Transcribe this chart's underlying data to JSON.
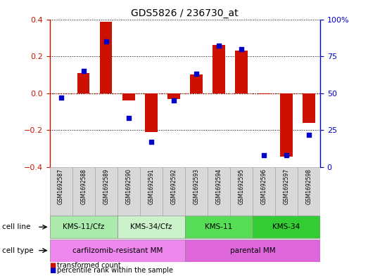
{
  "title": "GDS5826 / 236730_at",
  "samples": [
    "GSM1692587",
    "GSM1692588",
    "GSM1692589",
    "GSM1692590",
    "GSM1692591",
    "GSM1692592",
    "GSM1692593",
    "GSM1692594",
    "GSM1692595",
    "GSM1692596",
    "GSM1692597",
    "GSM1692598"
  ],
  "transformed_count": [
    0.0,
    0.11,
    0.385,
    -0.04,
    -0.21,
    -0.03,
    0.1,
    0.26,
    0.23,
    -0.005,
    -0.345,
    -0.16
  ],
  "percentile_rank": [
    47,
    65,
    85,
    33,
    17,
    45,
    63,
    82,
    80,
    8,
    8,
    22
  ],
  "cell_line_groups": [
    {
      "label": "KMS-11/Cfz",
      "start": 0,
      "end": 3,
      "color": "#aaeaaa"
    },
    {
      "label": "KMS-34/Cfz",
      "start": 3,
      "end": 6,
      "color": "#ccf2cc"
    },
    {
      "label": "KMS-11",
      "start": 6,
      "end": 9,
      "color": "#55dd55"
    },
    {
      "label": "KMS-34",
      "start": 9,
      "end": 12,
      "color": "#33cc33"
    }
  ],
  "cell_type_groups": [
    {
      "label": "carfilzomib-resistant MM",
      "start": 0,
      "end": 6,
      "color": "#ee88ee"
    },
    {
      "label": "parental MM",
      "start": 6,
      "end": 12,
      "color": "#dd66dd"
    }
  ],
  "bar_color": "#cc1100",
  "dot_color": "#0000cc",
  "ylim": [
    -0.4,
    0.4
  ],
  "y2lim": [
    0,
    100
  ],
  "yticks": [
    -0.4,
    -0.2,
    0.0,
    0.2,
    0.4
  ],
  "y2ticks": [
    0,
    25,
    50,
    75,
    100
  ],
  "y2ticklabels": [
    "0",
    "25",
    "50",
    "75",
    "100%"
  ],
  "legend_red": "transformed count",
  "legend_blue": "percentile rank within the sample",
  "cell_line_label": "cell line",
  "cell_type_label": "cell type",
  "sample_box_color": "#d8d8d8",
  "bar_width": 0.55
}
